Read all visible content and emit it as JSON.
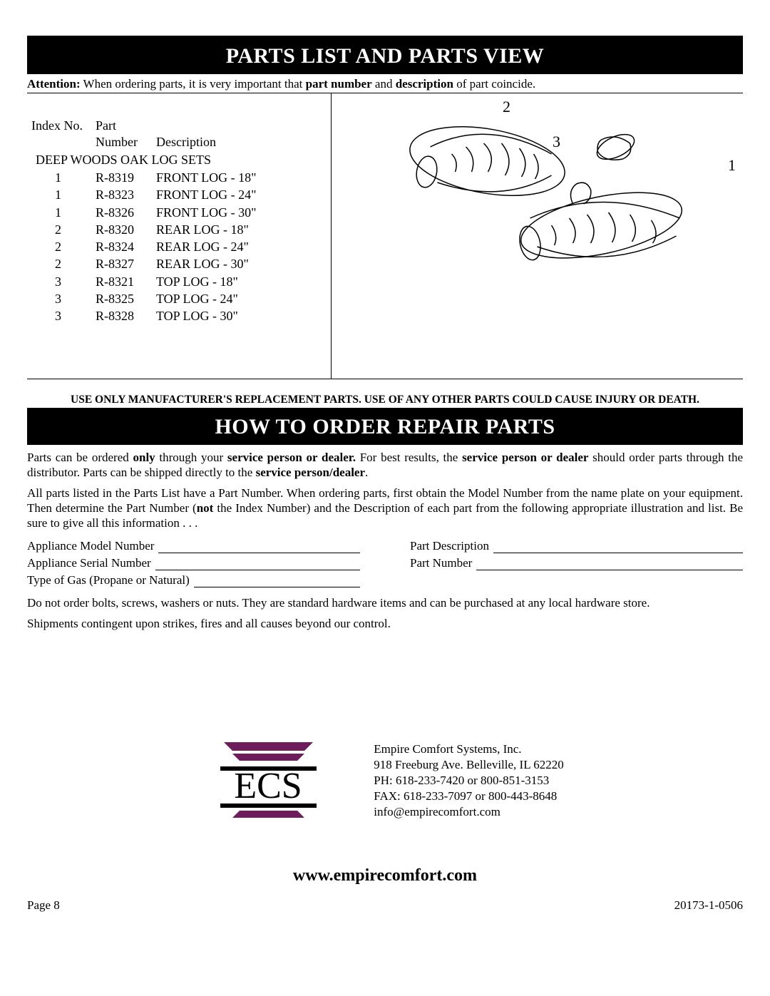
{
  "header": {
    "title1": "PARTS LIST AND PARTS VIEW",
    "attention_label": "Attention:",
    "attention_text_a": " When ordering parts, it is very important that ",
    "attention_bold_a": "part number",
    "attention_text_b": " and ",
    "attention_bold_b": "description",
    "attention_text_c": " of part coincide."
  },
  "table": {
    "headers": {
      "index": "Index No.",
      "part": "Part",
      "number": "Number",
      "description": "Description"
    },
    "section_label": "DEEP WOODS OAK LOG SETS",
    "rows": [
      {
        "idx": "1",
        "num": "R-8319",
        "desc": "FRONT LOG - 18\""
      },
      {
        "idx": "1",
        "num": "R-8323",
        "desc": "FRONT LOG - 24\""
      },
      {
        "idx": "1",
        "num": "R-8326",
        "desc": "FRONT LOG - 30\""
      },
      {
        "idx": "2",
        "num": "R-8320",
        "desc": "REAR LOG - 18\""
      },
      {
        "idx": "2",
        "num": "R-8324",
        "desc": "REAR LOG - 24\""
      },
      {
        "idx": "2",
        "num": "R-8327",
        "desc": "REAR LOG - 30\""
      },
      {
        "idx": "3",
        "num": "R-8321",
        "desc": "TOP LOG - 18\""
      },
      {
        "idx": "3",
        "num": "R-8325",
        "desc": "TOP LOG - 24\""
      },
      {
        "idx": "3",
        "num": "R-8328",
        "desc": "TOP LOG - 30\""
      }
    ]
  },
  "diagram": {
    "callouts": [
      "2",
      "3",
      "1"
    ]
  },
  "warning": "USE ONLY MANUFACTURER'S REPLACEMENT PARTS. USE OF ANY OTHER PARTS COULD CAUSE INJURY OR DEATH.",
  "title2": "HOW TO ORDER REPAIR PARTS",
  "order": {
    "p1_a": "Parts can be ordered ",
    "p1_b1": "only",
    "p1_c": " through your ",
    "p1_b2": "service person or dealer.",
    "p1_d": " For best results, the ",
    "p1_b3": "service person or dealer",
    "p1_e": " should order parts through the distributor. Parts can be shipped directly to the ",
    "p1_b4": "service person/dealer",
    "p1_f": ".",
    "p2_a": "All parts listed in the Parts List have a Part Number. When ordering parts, first obtain the Model Number from the name plate on your equipment. Then determine the Part Number (",
    "p2_b": "not",
    "p2_c": " the Index Number) and the Description of each part from the following appropriate illustration and list. Be sure to give all this information . . .",
    "form_left": [
      "Appliance Model Number",
      "Appliance Serial Number",
      "Type of Gas (Propane or Natural)"
    ],
    "form_right": [
      "Part Description",
      "Part Number"
    ],
    "p3": "Do not order bolts, screws, washers or nuts. They are standard hardware items and can be purchased at any local hardware store.",
    "p4": "Shipments contingent upon strikes, fires and all causes beyond our control."
  },
  "company": {
    "lines": [
      "Empire Comfort Systems, Inc.",
      "918 Freeburg Ave. Belleville, IL  62220",
      "PH: 618-233-7420 or 800-851-3153",
      "FAX: 618-233-7097 or 800-443-8648",
      "info@empirecomfort.com"
    ],
    "logo_text": "ECS"
  },
  "website": "www.empirecomfort.com",
  "footer": {
    "page": "Page 8",
    "doc": "20173-1-0506"
  },
  "colors": {
    "accent": "#6d1d5c",
    "black": "#000000"
  }
}
